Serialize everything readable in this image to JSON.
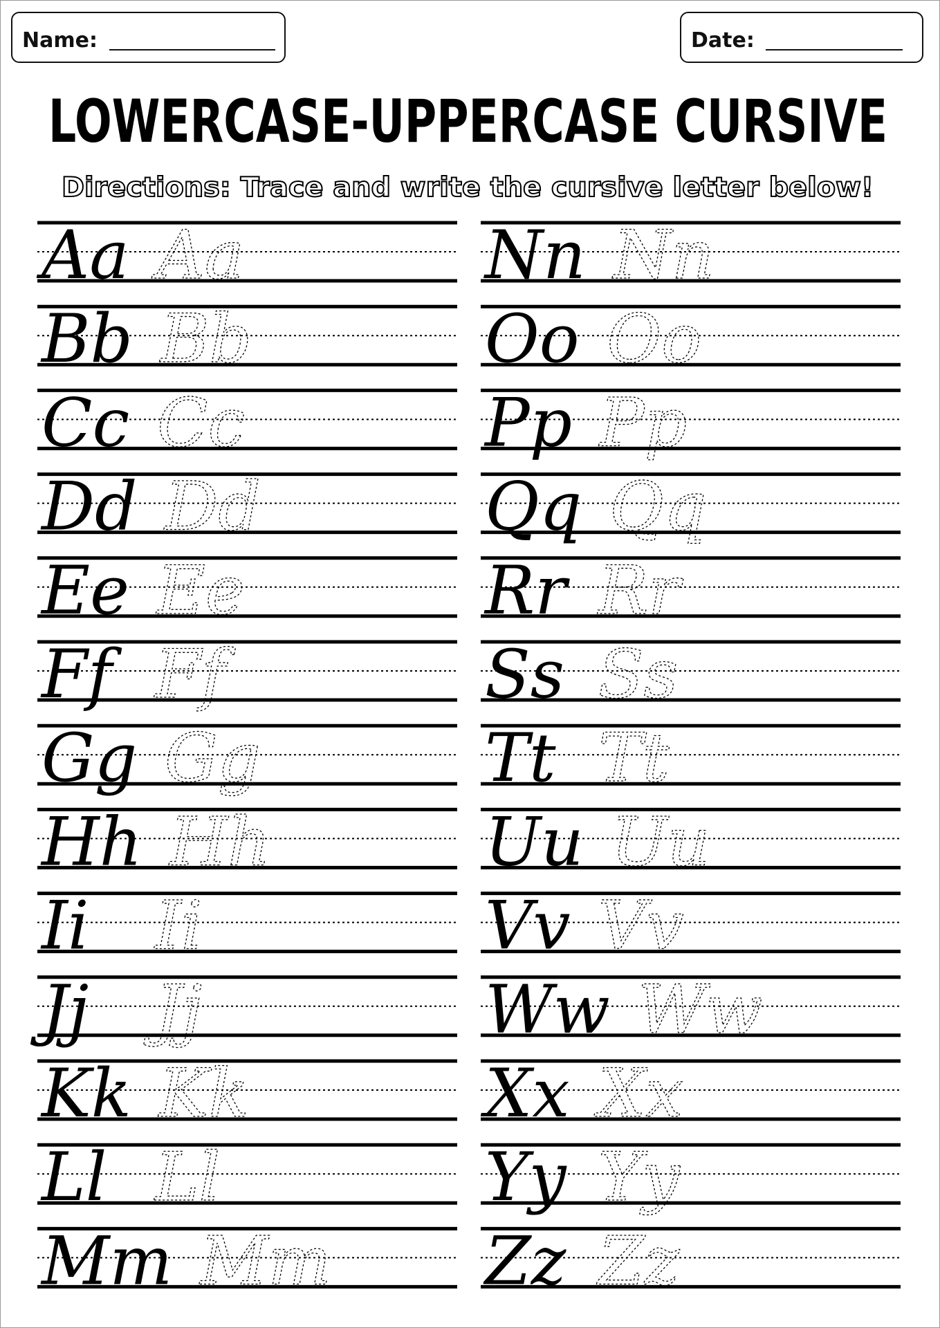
{
  "header": {
    "name_label": "Name:",
    "date_label": "Date:"
  },
  "title": "LOWERCASE-UPPERCASE CURSIVE",
  "directions": "Directions: Trace and write the cursive letter below!",
  "letters": {
    "left": [
      "Aa",
      "Bb",
      "Cc",
      "Dd",
      "Ee",
      "Ff",
      "Gg",
      "Hh",
      "Ii",
      "Jj",
      "Kk",
      "Ll",
      "Mm"
    ],
    "right": [
      "Nn",
      "Oo",
      "Pp",
      "Qq",
      "Rr",
      "Ss",
      "Tt",
      "Uu",
      "Vv",
      "Ww",
      "Xx",
      "Yy",
      "Zz"
    ]
  }
}
